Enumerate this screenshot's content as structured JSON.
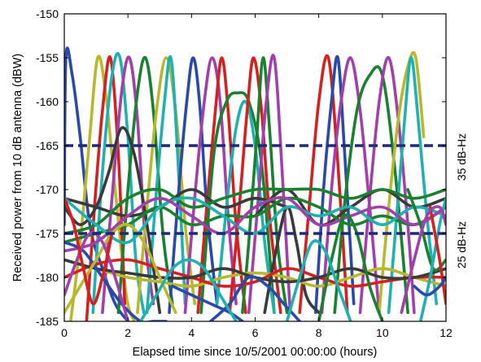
{
  "chart_data": {
    "type": "line",
    "xlabel": "Elapsed time since 10/5/2001 00:00:00 (hours)",
    "ylabel": "Received power from 10 dB antenna (dBW)",
    "xlim": [
      0,
      12
    ],
    "ylim": [
      -185,
      -150
    ],
    "xticks": [
      "0",
      "2",
      "4",
      "6",
      "8",
      "10",
      "12"
    ],
    "yticks": [
      "-150",
      "-155",
      "-160",
      "-165",
      "-170",
      "-175",
      "-180",
      "-185"
    ],
    "grid": false,
    "thresholds": [
      {
        "label": "35 dB-Hz",
        "y": -165,
        "color": "#1f2a78"
      },
      {
        "label": "25 dB-Hz",
        "y": -175,
        "color": "#1f2a78"
      }
    ],
    "series": [
      {
        "color": "#2a4aa8",
        "x": [
          0,
          0.05,
          0.25,
          0.5,
          0.8,
          1.2,
          1.6,
          2.0
        ],
        "y": [
          -174,
          -155,
          -157,
          -164,
          -174,
          -179,
          -183,
          -185
        ]
      },
      {
        "color": "#b8b830",
        "x": [
          0.2,
          0.5,
          0.8,
          1.05,
          1.3,
          1.6,
          1.95,
          2.2
        ],
        "y": [
          -185,
          -176,
          -164,
          -155,
          -159,
          -170,
          -182,
          -185
        ]
      },
      {
        "color": "#d42020",
        "x": [
          0.7,
          0.95,
          1.2,
          1.45,
          1.7,
          1.9
        ],
        "y": [
          -185,
          -172,
          -161,
          -155,
          -166,
          -183
        ]
      },
      {
        "color": "#20b0b0",
        "x": [
          0.9,
          1.2,
          1.5,
          1.75,
          2.0,
          2.25,
          2.5
        ],
        "y": [
          -184,
          -168,
          -157,
          -155,
          -164,
          -178,
          -184
        ]
      },
      {
        "color": "#a040a8",
        "x": [
          1.2,
          1.5,
          1.8,
          2.05,
          2.3,
          2.55,
          2.8
        ],
        "y": [
          -184,
          -171,
          -159,
          -155,
          -162,
          -176,
          -183
        ]
      },
      {
        "color": "#1b8030",
        "x": [
          1.7,
          2.0,
          2.3,
          2.55,
          2.8,
          3.1,
          3.4
        ],
        "y": [
          -184,
          -170,
          -159,
          -155,
          -161,
          -175,
          -183
        ]
      },
      {
        "color": "#b8b830",
        "x": [
          2.3,
          2.6,
          2.9,
          3.2,
          3.5,
          3.8,
          4.1
        ],
        "y": [
          -184,
          -172,
          -161,
          -155,
          -161,
          -174,
          -183
        ]
      },
      {
        "color": "#20b0b0",
        "x": [
          2.6,
          2.9,
          3.15,
          3.35,
          3.55,
          3.8
        ],
        "y": [
          -184,
          -170,
          -160,
          -155,
          -165,
          -183
        ]
      },
      {
        "color": "#2a4aa8",
        "x": [
          3.3,
          3.6,
          3.85,
          4.05,
          4.25,
          4.5,
          4.8
        ],
        "y": [
          -184,
          -170,
          -160,
          -155,
          -160,
          -173,
          -183
        ]
      },
      {
        "color": "#a040a8",
        "x": [
          3.8,
          4.1,
          4.4,
          4.65,
          4.9,
          5.15,
          5.4
        ],
        "y": [
          -184,
          -171,
          -160,
          -155,
          -160,
          -173,
          -183
        ]
      },
      {
        "color": "#d42020",
        "x": [
          4.2,
          4.5,
          4.75,
          4.95,
          5.15,
          5.4,
          5.7
        ],
        "y": [
          -184,
          -171,
          -161,
          -155,
          -161,
          -174,
          -184
        ]
      },
      {
        "color": "#1b8030",
        "x": [
          4.3,
          4.7,
          5.1,
          5.45,
          5.8,
          6.2,
          6.6
        ],
        "y": [
          -184,
          -166,
          -160,
          -159,
          -160,
          -167,
          -184
        ]
      },
      {
        "color": "#20b0b0",
        "x": [
          4.8,
          5.1,
          5.4,
          5.7,
          6.0,
          6.3,
          6.6
        ],
        "y": [
          -183,
          -172,
          -163,
          -160,
          -165,
          -176,
          -184
        ]
      },
      {
        "color": "#d42020",
        "x": [
          5.2,
          5.5,
          5.75,
          5.95,
          6.2,
          6.45,
          6.8
        ],
        "y": [
          -184,
          -172,
          -161,
          -155,
          -161,
          -173,
          -184
        ]
      },
      {
        "color": "#1b8030",
        "x": [
          5.6,
          5.8,
          6.05,
          6.25,
          6.45,
          6.7,
          7.0
        ],
        "y": [
          -184,
          -176,
          -164,
          -155,
          -163,
          -176,
          -184
        ]
      },
      {
        "color": "#a040a8",
        "x": [
          5.8,
          6.1,
          6.35,
          6.6,
          6.85,
          7.1
        ],
        "y": [
          -184,
          -171,
          -160,
          -155,
          -168,
          -184
        ]
      },
      {
        "color": "#d42020",
        "x": [
          7.4,
          7.7,
          8.0,
          8.3,
          8.6,
          8.9
        ],
        "y": [
          -184,
          -172,
          -160,
          -155,
          -167,
          -184
        ]
      },
      {
        "color": "#2a4aa8",
        "x": [
          7.9,
          8.15,
          8.4,
          8.6,
          8.8,
          9.1
        ],
        "y": [
          -184,
          -170,
          -160,
          -155,
          -165,
          -183
        ]
      },
      {
        "color": "#a040a8",
        "x": [
          8.1,
          8.4,
          8.7,
          9.0,
          9.3,
          9.6,
          9.9
        ],
        "y": [
          -184,
          -170,
          -160,
          -155,
          -161,
          -172,
          -184
        ]
      },
      {
        "color": "#1b8030",
        "x": [
          8.5,
          8.8,
          9.2,
          9.6,
          10.0,
          10.4,
          10.8
        ],
        "y": [
          -184,
          -172,
          -161,
          -157,
          -157,
          -168,
          -184
        ]
      },
      {
        "color": "#a040a8",
        "x": [
          9.3,
          9.6,
          9.9,
          10.2,
          10.5,
          10.8,
          11.0
        ],
        "y": [
          -184,
          -171,
          -160,
          -155,
          -162,
          -174,
          -184
        ]
      },
      {
        "color": "#b8b830",
        "x": [
          9.9,
          10.2,
          10.5,
          10.8,
          11.05,
          11.3
        ],
        "y": [
          -184,
          -172,
          -162,
          -156,
          -155,
          -164
        ]
      },
      {
        "color": "#20b0b0",
        "x": [
          10.2,
          10.45,
          10.7,
          10.9,
          11.1,
          11.4,
          11.7
        ],
        "y": [
          -184,
          -173,
          -162,
          -155,
          -161,
          -173,
          -183
        ]
      },
      {
        "color": "#3a3a3a",
        "x": [
          0,
          0.5,
          1.0,
          1.4,
          1.8,
          2.2,
          2.6,
          3.0
        ],
        "y": [
          -172,
          -174,
          -172,
          -168,
          -163,
          -166,
          -174,
          -184
        ]
      },
      {
        "color": "#3a3a3a",
        "x": [
          0,
          1,
          2,
          3,
          4,
          5,
          6,
          7
        ],
        "y": [
          -171,
          -172,
          -173,
          -172,
          -170,
          -172,
          -171,
          -172
        ]
      },
      {
        "color": "#3a3a3a",
        "x": [
          6,
          7,
          8,
          9,
          10,
          11,
          12
        ],
        "y": [
          -173,
          -170,
          -174,
          -172,
          -170,
          -172,
          -171
        ]
      },
      {
        "color": "#3a3a3a",
        "x": [
          6.3,
          6.6,
          7.0,
          7.3,
          7.6,
          8.0
        ],
        "y": [
          -184,
          -178,
          -172,
          -176,
          -182,
          -184
        ]
      },
      {
        "color": "#1b8030",
        "x": [
          0,
          1,
          2,
          3,
          4,
          5,
          6,
          7,
          8,
          9,
          10,
          11,
          12
        ],
        "y": [
          -175,
          -174,
          -171,
          -170,
          -172,
          -171,
          -170,
          -170,
          -170,
          -171,
          -170,
          -171,
          -170
        ]
      },
      {
        "color": "#1b8030",
        "x": [
          0,
          1,
          2,
          3,
          4,
          5,
          6,
          7,
          8,
          9,
          10,
          11,
          12
        ],
        "y": [
          -176,
          -175,
          -174,
          -172,
          -174,
          -173,
          -173,
          -171,
          -172,
          -174,
          -173,
          -174,
          -172
        ]
      },
      {
        "color": "#20b0b0",
        "x": [
          0,
          1,
          2,
          3,
          4,
          5,
          6,
          7,
          8,
          9,
          10,
          11,
          12
        ],
        "y": [
          -171,
          -174,
          -176,
          -172,
          -171,
          -173,
          -175,
          -172,
          -173,
          -172,
          -174,
          -172,
          -173
        ]
      },
      {
        "color": "#a040a8",
        "x": [
          0,
          1,
          2,
          3,
          4,
          5,
          6,
          7,
          8,
          9,
          10,
          11,
          12
        ],
        "y": [
          -177,
          -176,
          -173,
          -171,
          -173,
          -175,
          -172,
          -171,
          -174,
          -173,
          -172,
          -174,
          -172
        ]
      },
      {
        "color": "#b8b830",
        "x": [
          0,
          1,
          2,
          3,
          4,
          5,
          6,
          7,
          8,
          9,
          10,
          11,
          12
        ],
        "y": [
          -178,
          -179,
          -180,
          -180.5,
          -181,
          -180,
          -179.5,
          -180,
          -181,
          -180,
          -179,
          -180,
          -181
        ]
      },
      {
        "color": "#d42020",
        "x": [
          0,
          1,
          2,
          3,
          4,
          5,
          6,
          7,
          8,
          9,
          10,
          11,
          12
        ],
        "y": [
          -180,
          -178.5,
          -178,
          -179,
          -180,
          -181,
          -180.5,
          -179,
          -180,
          -181,
          -180.5,
          -180,
          -180
        ]
      },
      {
        "color": "#3a3a3a",
        "x": [
          0,
          1,
          2,
          3,
          4,
          5,
          6,
          7,
          8,
          9,
          10,
          11,
          12
        ],
        "y": [
          -178,
          -179,
          -179.5,
          -180,
          -180,
          -179,
          -180,
          -180.5,
          -180,
          -179,
          -180,
          -180,
          -179
        ]
      },
      {
        "color": "#2a4aa8",
        "x": [
          0,
          0.6,
          1.2,
          1.8,
          2.4,
          2.8,
          3.2
        ],
        "y": [
          -176,
          -177,
          -180,
          -183,
          -185,
          -185,
          -185
        ]
      },
      {
        "color": "#2a4aa8",
        "x": [
          3.4,
          4.0,
          4.6,
          5.2,
          5.6
        ],
        "y": [
          -181,
          -182,
          -183,
          -184,
          -185
        ]
      },
      {
        "color": "#b8b830",
        "x": [
          0,
          0.5,
          1.0,
          1.5,
          2.0,
          2.5,
          3.0,
          3.5
        ],
        "y": [
          -184,
          -181,
          -178,
          -175,
          -174,
          -176,
          -180,
          -184
        ]
      },
      {
        "color": "#a040a8",
        "x": [
          0,
          0.4,
          0.8,
          1.2,
          1.6,
          2.0
        ],
        "y": [
          -182,
          -178,
          -175,
          -176,
          -180,
          -185
        ]
      },
      {
        "color": "#d42020",
        "x": [
          0,
          0.3,
          0.6,
          0.9,
          1.2,
          1.5
        ],
        "y": [
          -171,
          -174,
          -179,
          -183,
          -180,
          -175
        ]
      },
      {
        "color": "#2a4aa8",
        "x": [
          4.6,
          5.2,
          5.8,
          6.4,
          6.9,
          7.4
        ],
        "y": [
          -185,
          -183,
          -180,
          -181,
          -183,
          -185
        ]
      },
      {
        "color": "#20b0b0",
        "x": [
          2.4,
          2.9,
          3.4,
          3.9,
          4.4,
          4.9,
          5.4
        ],
        "y": [
          -185,
          -182,
          -179,
          -178,
          -179,
          -182,
          -185
        ]
      },
      {
        "color": "#1b8030",
        "x": [
          10.8,
          11.2,
          11.6,
          12.0
        ],
        "y": [
          -170,
          -174,
          -179,
          -178
        ]
      },
      {
        "color": "#20b0b0",
        "x": [
          11.2,
          11.5,
          11.8,
          12.0
        ],
        "y": [
          -185,
          -180,
          -174,
          -171
        ]
      },
      {
        "color": "#d42020",
        "x": [
          11.5,
          11.8,
          12.0
        ],
        "y": [
          -172,
          -178,
          -183
        ]
      },
      {
        "color": "#2a4aa8",
        "x": [
          11.0,
          11.4,
          11.8,
          12.0
        ],
        "y": [
          -181,
          -182,
          -181,
          -180
        ]
      },
      {
        "color": "#a040a8",
        "x": [
          10.6,
          11.0,
          11.4,
          11.8,
          12.0
        ],
        "y": [
          -184,
          -178,
          -173,
          -172,
          -174
        ]
      },
      {
        "color": "#1b8030",
        "x": [
          8.0,
          8.4,
          8.8,
          9.2,
          9.6,
          10.0
        ],
        "y": [
          -185,
          -178,
          -173,
          -175,
          -181,
          -185
        ]
      },
      {
        "color": "#20b0b0",
        "x": [
          7.0,
          7.4,
          7.8,
          8.2,
          8.6,
          9.0
        ],
        "y": [
          -185,
          -180,
          -176,
          -177,
          -181,
          -185
        ]
      }
    ]
  }
}
